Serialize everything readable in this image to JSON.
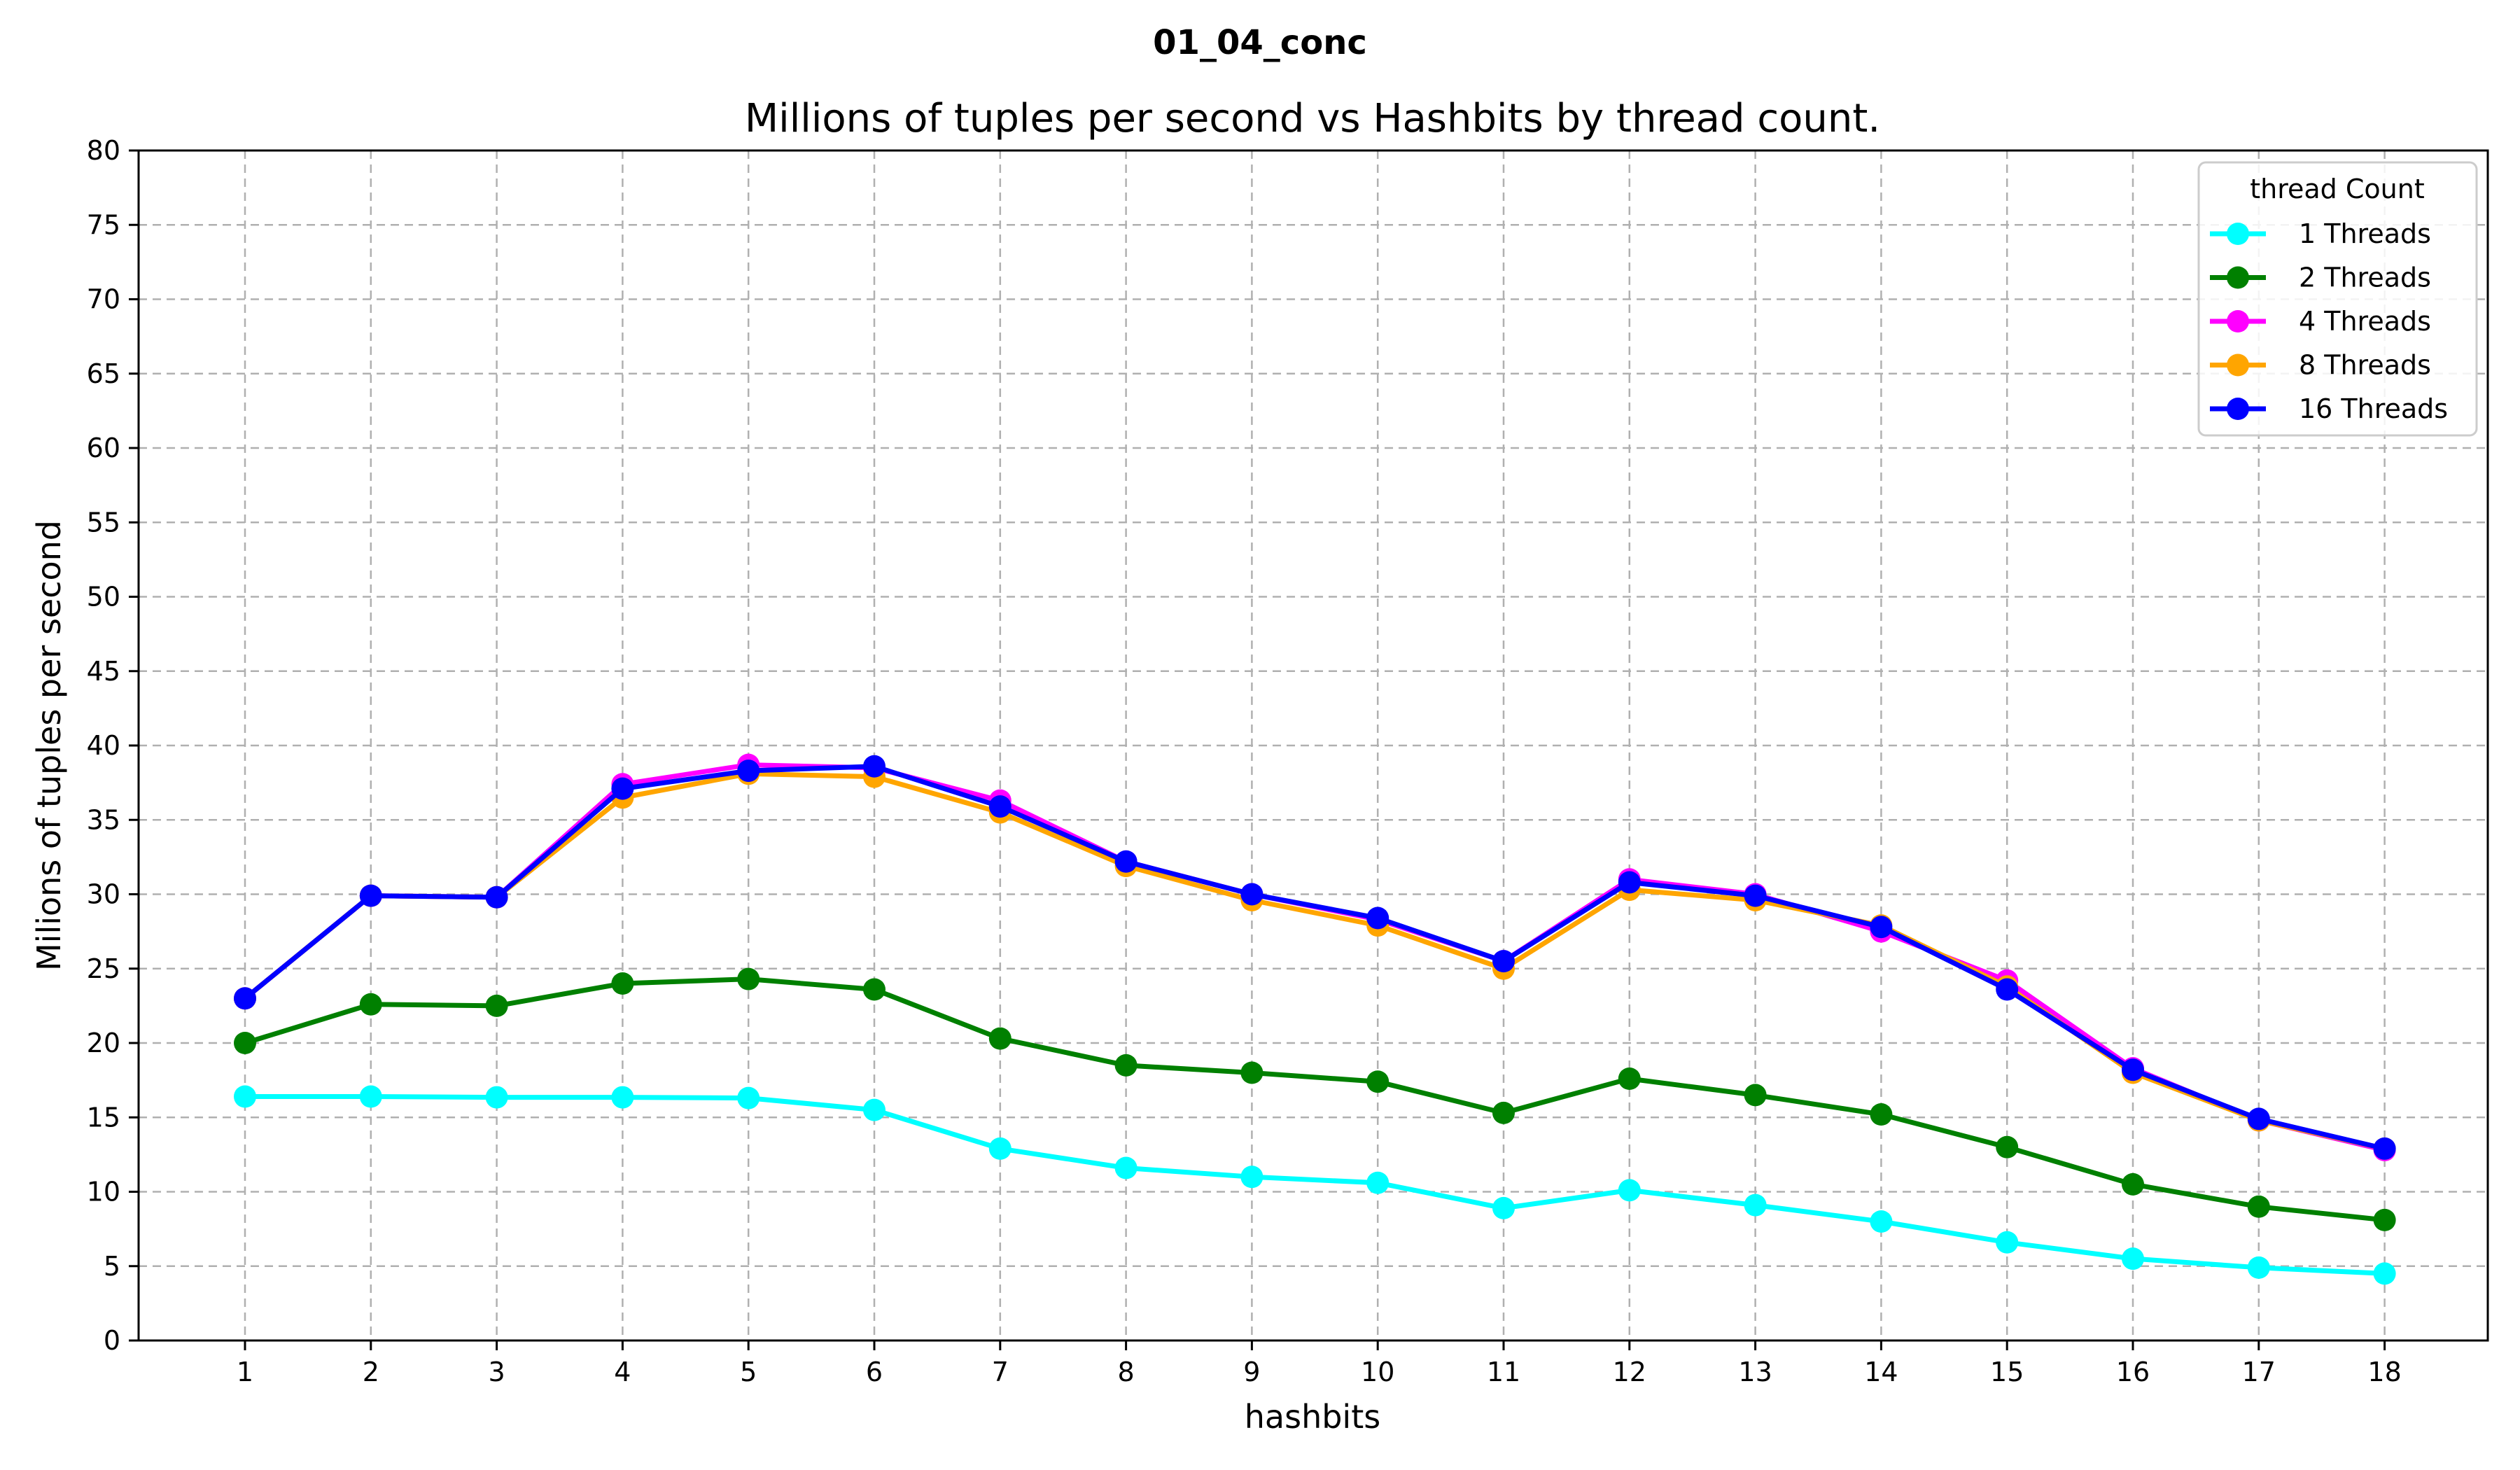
{
  "figure": {
    "suptitle": "01_04_conc"
  },
  "chart_data": {
    "type": "line",
    "title": "Millions of tuples per second vs Hashbits by thread count.",
    "xlabel": "hashbits",
    "ylabel": "Milions of tuples per second",
    "x": [
      1,
      2,
      3,
      4,
      5,
      6,
      7,
      8,
      9,
      10,
      11,
      12,
      13,
      14,
      15,
      16,
      17,
      18
    ],
    "xticks": [
      "1",
      "2",
      "3",
      "4",
      "5",
      "6",
      "7",
      "8",
      "9",
      "10",
      "11",
      "12",
      "13",
      "14",
      "15",
      "16",
      "17",
      "18"
    ],
    "ylim": [
      0,
      80
    ],
    "yticks": [
      "0",
      "5",
      "10",
      "15",
      "20",
      "25",
      "30",
      "35",
      "40",
      "45",
      "50",
      "55",
      "60",
      "65",
      "70",
      "75",
      "80"
    ],
    "grid": true,
    "legend": {
      "title": "thread Count",
      "position": "top-right"
    },
    "series": [
      {
        "name": "1 Threads",
        "color": "#00FFFF",
        "values": [
          16.4,
          16.4,
          16.35,
          16.35,
          16.3,
          15.5,
          12.9,
          11.6,
          11.0,
          10.6,
          8.9,
          10.1,
          9.1,
          8.0,
          6.6,
          5.5,
          4.9,
          4.5
        ]
      },
      {
        "name": "2 Threads",
        "color": "#008000",
        "values": [
          20.0,
          22.6,
          22.5,
          24.0,
          24.3,
          23.6,
          20.3,
          18.5,
          18.0,
          17.4,
          15.3,
          17.6,
          16.5,
          15.2,
          13.0,
          10.5,
          9.0,
          8.1
        ]
      },
      {
        "name": "4 Threads",
        "color": "#FF00FF",
        "values": [
          23.0,
          29.9,
          29.8,
          37.4,
          38.7,
          38.5,
          36.3,
          32.2,
          30.0,
          28.3,
          25.5,
          31.0,
          30.0,
          27.5,
          24.2,
          18.3,
          14.8,
          12.8
        ]
      },
      {
        "name": "8 Threads",
        "color": "#FFA500",
        "values": [
          23.0,
          29.9,
          29.8,
          36.5,
          38.1,
          37.9,
          35.5,
          31.9,
          29.6,
          27.9,
          25.0,
          30.3,
          29.6,
          27.9,
          23.8,
          18.0,
          14.8,
          12.9
        ]
      },
      {
        "name": "16 Threads",
        "color": "#0000FF",
        "values": [
          23.0,
          29.9,
          29.8,
          37.1,
          38.3,
          38.6,
          35.9,
          32.2,
          30.0,
          28.4,
          25.5,
          30.8,
          29.9,
          27.8,
          23.6,
          18.2,
          14.9,
          12.9
        ]
      }
    ]
  }
}
